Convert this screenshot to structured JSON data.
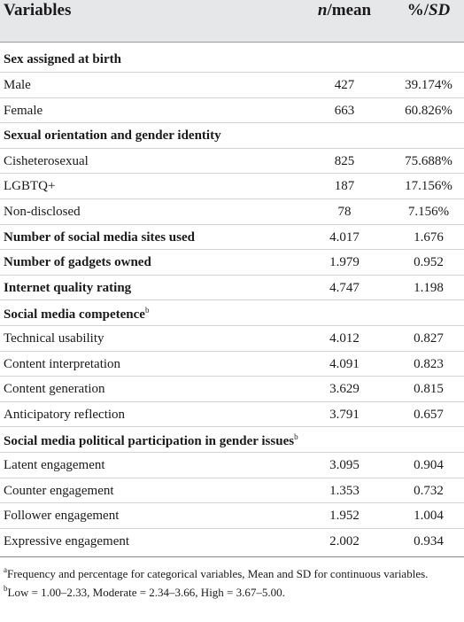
{
  "header": {
    "col1": "Variables",
    "col2_italic": "n",
    "col2_rest": "/mean",
    "col3_rest": "%/",
    "col3_italic": "SD"
  },
  "rows": [
    {
      "label": "Sex assigned at birth",
      "v1": "",
      "v2": ""
    },
    {
      "label": "Male",
      "v1": "427",
      "v2": "39.174%"
    },
    {
      "label": "Female",
      "v1": "663",
      "v2": "60.826%"
    },
    {
      "label": "Sexual orientation and gender identity",
      "v1": "",
      "v2": ""
    },
    {
      "label": "Cisheterosexual",
      "v1": "825",
      "v2": "75.688%"
    },
    {
      "label": "LGBTQ+",
      "v1": "187",
      "v2": "17.156%"
    },
    {
      "label": "Non-disclosed",
      "v1": "78",
      "v2": "7.156%"
    },
    {
      "label": "Number of social media sites used",
      "v1": "4.017",
      "v2": "1.676"
    },
    {
      "label": "Number of gadgets owned",
      "v1": "1.979",
      "v2": "0.952"
    },
    {
      "label": "Internet quality rating",
      "v1": "4.747",
      "v2": "1.198"
    },
    {
      "label": "Social media competence",
      "sup": "b",
      "v1": "",
      "v2": ""
    },
    {
      "label": "Technical usability",
      "v1": "4.012",
      "v2": "0.827"
    },
    {
      "label": "Content interpretation",
      "v1": "4.091",
      "v2": "0.823"
    },
    {
      "label": "Content generation",
      "v1": "3.629",
      "v2": "0.815"
    },
    {
      "label": "Anticipatory reflection",
      "v1": "3.791",
      "v2": "0.657"
    },
    {
      "label": "Social media political participation in gender issues",
      "sup": "b",
      "v1": "",
      "v2": ""
    },
    {
      "label": "Latent engagement",
      "v1": "3.095",
      "v2": "0.904"
    },
    {
      "label": "Counter engagement",
      "v1": "1.353",
      "v2": "0.732"
    },
    {
      "label": "Follower engagement",
      "v1": "1.952",
      "v2": "1.004"
    },
    {
      "label": "Expressive engagement",
      "v1": "2.002",
      "v2": "0.934"
    }
  ],
  "notes": {
    "a_mark": "a",
    "a_text": "Frequency and percentage for categorical variables, Mean and SD for continuous variables.",
    "b_mark": "b",
    "b_text": "Low = 1.00–2.33, Moderate = 2.34–3.66, High = 3.67–5.00."
  }
}
